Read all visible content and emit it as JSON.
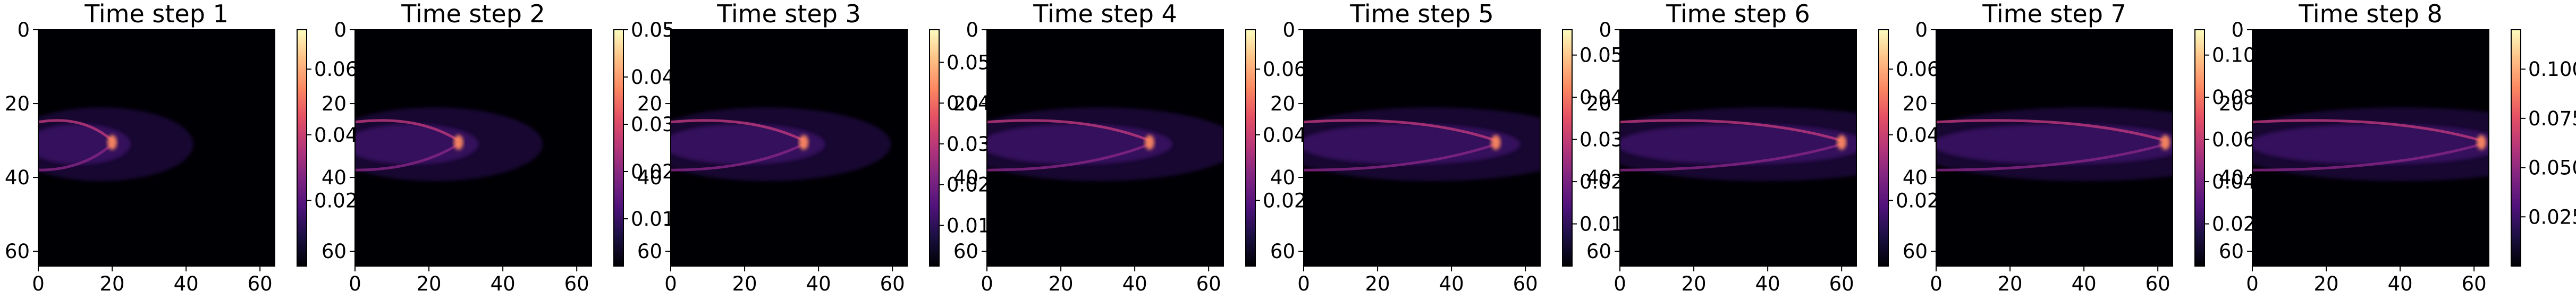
{
  "chart_data": {
    "type": "heatmap",
    "colormap": "magma",
    "image_extent": [
      0,
      64
    ],
    "panels": [
      {
        "title": "Time step 1",
        "xticks": [
          "0",
          "20",
          "40",
          "60"
        ],
        "yticks": [
          "0",
          "20",
          "40",
          "60"
        ],
        "cbar_ticks": [
          {
            "value": 0.02,
            "label": "0.02"
          },
          {
            "value": 0.04,
            "label": "0.04"
          },
          {
            "value": 0.06,
            "label": "0.06"
          }
        ],
        "cbar_range": [
          0,
          0.072
        ],
        "front_x": 20
      },
      {
        "title": "Time step 2",
        "xticks": [
          "0",
          "20",
          "40",
          "60"
        ],
        "yticks": [
          "0",
          "20",
          "40",
          "60"
        ],
        "cbar_ticks": [
          {
            "value": 0.01,
            "label": "0.01"
          },
          {
            "value": 0.02,
            "label": "0.02"
          },
          {
            "value": 0.03,
            "label": "0.03"
          },
          {
            "value": 0.04,
            "label": "0.04"
          },
          {
            "value": 0.05,
            "label": "0.05"
          }
        ],
        "cbar_range": [
          0,
          0.05
        ],
        "front_x": 28
      },
      {
        "title": "Time step 3",
        "xticks": [
          "0",
          "20",
          "40",
          "60"
        ],
        "yticks": [
          "0",
          "20",
          "40",
          "60"
        ],
        "cbar_ticks": [
          {
            "value": 0.01,
            "label": "0.01"
          },
          {
            "value": 0.02,
            "label": "0.02"
          },
          {
            "value": 0.03,
            "label": "0.03"
          },
          {
            "value": 0.04,
            "label": "0.04"
          },
          {
            "value": 0.05,
            "label": "0.05"
          }
        ],
        "cbar_range": [
          0,
          0.058
        ],
        "front_x": 36
      },
      {
        "title": "Time step 4",
        "xticks": [
          "0",
          "20",
          "40",
          "60"
        ],
        "yticks": [
          "0",
          "20",
          "40",
          "60"
        ],
        "cbar_ticks": [
          {
            "value": 0.02,
            "label": "0.02"
          },
          {
            "value": 0.04,
            "label": "0.04"
          },
          {
            "value": 0.06,
            "label": "0.06"
          }
        ],
        "cbar_range": [
          0,
          0.072
        ],
        "front_x": 44
      },
      {
        "title": "Time step 5",
        "xticks": [
          "0",
          "20",
          "40",
          "60"
        ],
        "yticks": [
          "0",
          "20",
          "40",
          "60"
        ],
        "cbar_ticks": [
          {
            "value": 0.01,
            "label": "0.01"
          },
          {
            "value": 0.02,
            "label": "0.02"
          },
          {
            "value": 0.03,
            "label": "0.03"
          },
          {
            "value": 0.04,
            "label": "0.04"
          },
          {
            "value": 0.05,
            "label": "0.05"
          }
        ],
        "cbar_range": [
          0,
          0.056
        ],
        "front_x": 52
      },
      {
        "title": "Time step 6",
        "xticks": [
          "0",
          "20",
          "40",
          "60"
        ],
        "yticks": [
          "0",
          "20",
          "40",
          "60"
        ],
        "cbar_ticks": [
          {
            "value": 0.02,
            "label": "0.02"
          },
          {
            "value": 0.04,
            "label": "0.04"
          },
          {
            "value": 0.06,
            "label": "0.06"
          }
        ],
        "cbar_range": [
          0,
          0.072
        ],
        "front_x": 60
      },
      {
        "title": "Time step 7",
        "xticks": [
          "0",
          "20",
          "40",
          "60"
        ],
        "yticks": [
          "0",
          "20",
          "40",
          "60"
        ],
        "cbar_ticks": [
          {
            "value": 0.02,
            "label": "0.02"
          },
          {
            "value": 0.04,
            "label": "0.04"
          },
          {
            "value": 0.06,
            "label": "0.06"
          },
          {
            "value": 0.08,
            "label": "0.08"
          },
          {
            "value": 0.1,
            "label": "0.10"
          }
        ],
        "cbar_range": [
          0,
          0.112
        ],
        "front_x": 62
      },
      {
        "title": "Time step 8",
        "xticks": [
          "0",
          "20",
          "40",
          "60"
        ],
        "yticks": [
          "0",
          "20",
          "40",
          "60"
        ],
        "cbar_ticks": [
          {
            "value": 0.025,
            "label": "0.025"
          },
          {
            "value": 0.05,
            "label": "0.050"
          },
          {
            "value": 0.075,
            "label": "0.075"
          },
          {
            "value": 0.1,
            "label": "0.100"
          }
        ],
        "cbar_range": [
          0,
          0.12
        ],
        "front_x": 62
      }
    ]
  }
}
